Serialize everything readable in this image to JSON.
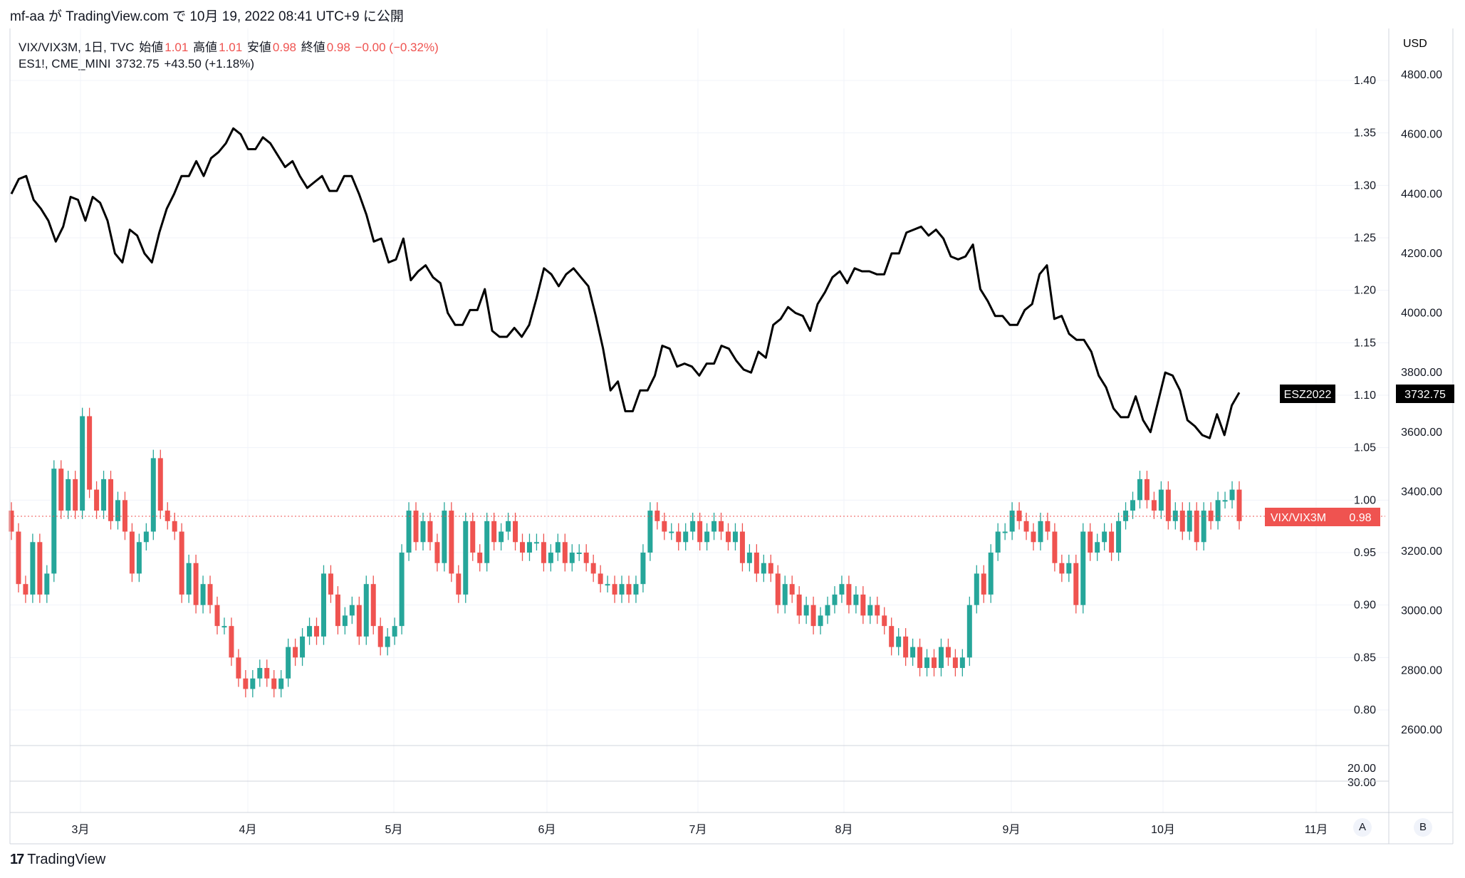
{
  "header": {
    "publish_line": "mf-aa が TradingView.com で 10月 19, 2022 08:41 UTC+9 に公開"
  },
  "legend": {
    "vix_symbol": "VIX/VIX3M, 1日, TVC",
    "open_label": "始値",
    "open_value": "1.01",
    "high_label": "高値",
    "high_value": "1.01",
    "low_label": "安値",
    "low_value": "0.98",
    "close_label": "終値",
    "close_value": "0.98",
    "change": "−0.00 (−0.32%)",
    "es_symbol": "ES1!, CME_MINI",
    "es_value": "3732.75",
    "es_change": "+43.50 (+1.18%)"
  },
  "footer": {
    "brand": "TradingView",
    "mark": "17"
  },
  "scale_buttons": {
    "a": "A",
    "b": "B"
  },
  "colors": {
    "up": "#26a69a",
    "down": "#ef5350",
    "line": "#000000",
    "grid": "#f0f3fa"
  },
  "chart_data": {
    "type": "candlestick+line",
    "x_labels": [
      "3月",
      "4月",
      "5月",
      "6月",
      "7月",
      "8月",
      "9月",
      "10月",
      "11月"
    ],
    "right_axis_unit": "USD",
    "right_axis_ticks": [
      "4800.00",
      "4600.00",
      "4400.00",
      "4200.00",
      "4000.00",
      "3800.00",
      "3600.00",
      "3400.00",
      "3200.00",
      "3000.00",
      "2800.00",
      "2600.00"
    ],
    "left_axis_ticks": [
      "1.40",
      "1.35",
      "1.30",
      "1.25",
      "1.20",
      "1.15",
      "1.10",
      "1.05",
      "1.00",
      "0.95",
      "0.90",
      "0.85",
      "0.80"
    ],
    "lower_pane_ticks": [
      "20.00",
      "30.00"
    ],
    "es_line": {
      "name": "ESZ2022",
      "last_value": "3732.75",
      "values": [
        4400,
        4450,
        4460,
        4380,
        4350,
        4310,
        4240,
        4290,
        4390,
        4380,
        4310,
        4390,
        4370,
        4310,
        4200,
        4170,
        4280,
        4260,
        4200,
        4170,
        4270,
        4350,
        4400,
        4460,
        4460,
        4510,
        4460,
        4520,
        4540,
        4570,
        4620,
        4600,
        4550,
        4550,
        4590,
        4570,
        4530,
        4490,
        4510,
        4460,
        4420,
        4440,
        4460,
        4410,
        4410,
        4460,
        4460,
        4400,
        4330,
        4240,
        4250,
        4170,
        4180,
        4250,
        4110,
        4140,
        4160,
        4120,
        4100,
        4000,
        3960,
        3960,
        4010,
        4010,
        4080,
        3940,
        3920,
        3920,
        3950,
        3920,
        3960,
        4050,
        4150,
        4130,
        4090,
        4130,
        4150,
        4120,
        4090,
        3990,
        3880,
        3740,
        3770,
        3670,
        3670,
        3740,
        3740,
        3790,
        3890,
        3880,
        3820,
        3830,
        3820,
        3790,
        3830,
        3830,
        3890,
        3880,
        3840,
        3810,
        3800,
        3870,
        3850,
        3960,
        3980,
        4020,
        4000,
        3990,
        3940,
        4030,
        4070,
        4120,
        4140,
        4100,
        4150,
        4140,
        4140,
        4130,
        4130,
        4200,
        4200,
        4270,
        4280,
        4290,
        4260,
        4280,
        4250,
        4190,
        4180,
        4190,
        4230,
        4080,
        4040,
        3990,
        3990,
        3960,
        3960,
        4010,
        4030,
        4130,
        4160,
        3980,
        3990,
        3930,
        3910,
        3910,
        3870,
        3790,
        3750,
        3680,
        3650,
        3650,
        3720,
        3640,
        3600,
        3700,
        3800,
        3790,
        3740,
        3640,
        3620,
        3590,
        3580,
        3660,
        3590,
        3690,
        3733
      ]
    },
    "vix_candles_close": [
      0.97,
      0.92,
      0.91,
      0.96,
      0.91,
      0.93,
      1.03,
      0.99,
      1.02,
      0.99,
      1.08,
      1.01,
      0.99,
      1.02,
      0.98,
      1.0,
      0.97,
      0.93,
      0.96,
      0.97,
      1.04,
      0.99,
      0.98,
      0.97,
      0.91,
      0.94,
      0.9,
      0.92,
      0.9,
      0.88,
      0.88,
      0.85,
      0.83,
      0.82,
      0.83,
      0.84,
      0.83,
      0.82,
      0.83,
      0.86,
      0.85,
      0.87,
      0.88,
      0.87,
      0.93,
      0.91,
      0.88,
      0.89,
      0.9,
      0.87,
      0.92,
      0.88,
      0.86,
      0.87,
      0.88,
      0.95,
      0.99,
      0.96,
      0.98,
      0.96,
      0.94,
      0.99,
      0.93,
      0.91,
      0.98,
      0.95,
      0.94,
      0.98,
      0.96,
      0.97,
      0.98,
      0.96,
      0.95,
      0.96,
      0.96,
      0.94,
      0.95,
      0.96,
      0.94,
      0.95,
      0.95,
      0.94,
      0.93,
      0.92,
      0.92,
      0.91,
      0.92,
      0.91,
      0.92,
      0.95,
      0.99,
      0.98,
      0.97,
      0.97,
      0.96,
      0.97,
      0.98,
      0.96,
      0.97,
      0.98,
      0.97,
      0.96,
      0.97,
      0.94,
      0.95,
      0.93,
      0.94,
      0.93,
      0.9,
      0.92,
      0.91,
      0.89,
      0.9,
      0.88,
      0.89,
      0.9,
      0.91,
      0.92,
      0.9,
      0.91,
      0.89,
      0.9,
      0.89,
      0.88,
      0.86,
      0.87,
      0.85,
      0.86,
      0.84,
      0.85,
      0.84,
      0.86,
      0.85,
      0.84,
      0.85,
      0.9,
      0.93,
      0.91,
      0.95,
      0.97,
      0.97,
      0.99,
      0.98,
      0.97,
      0.96,
      0.98,
      0.97,
      0.94,
      0.93,
      0.94,
      0.9,
      0.97,
      0.95,
      0.96,
      0.97,
      0.95,
      0.98,
      0.99,
      1.0,
      1.02,
      1.0,
      0.99,
      1.01,
      0.98,
      0.99,
      0.97,
      0.99,
      0.96,
      0.99,
      0.98,
      1.0,
      1.0,
      1.01,
      0.98
    ]
  }
}
